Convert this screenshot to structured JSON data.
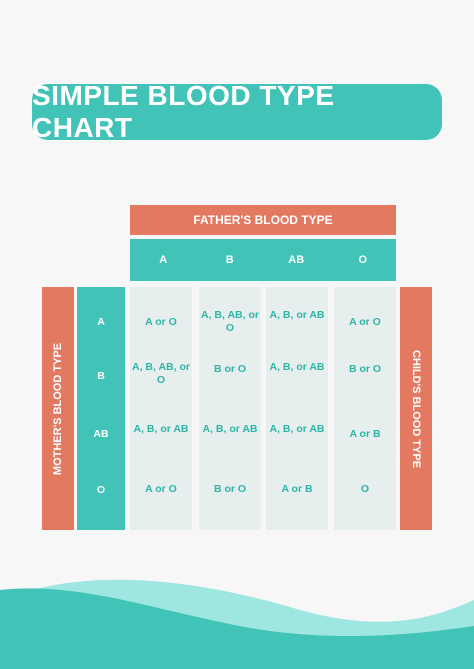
{
  "title": "SIMPLE BLOOD TYPE CHART",
  "colors": {
    "accent": "#41c3b7",
    "orange": "#e47961",
    "cell_bg": "#e6eeee",
    "text_teal": "#2fb5a8"
  },
  "father_label": "FATHER'S BLOOD TYPE",
  "mother_label": "MOTHER'S BLOOD TYPE",
  "child_label": "CHILD'S BLOOD TYPE",
  "father_types": [
    "A",
    "B",
    "AB",
    "O"
  ],
  "mother_types": [
    "A",
    "B",
    "AB",
    "O"
  ],
  "results": [
    [
      "A or O",
      "A, B, AB, or O",
      "A, B, or AB",
      "A or O"
    ],
    [
      "A, B, AB, or O",
      "B or O",
      "A, B, or AB",
      "B or O"
    ],
    [
      "A, B, or AB",
      "A, B, or AB",
      "A, B, or AB",
      "A or B"
    ],
    [
      "A or O",
      "B or O",
      "A or B",
      "O"
    ]
  ]
}
